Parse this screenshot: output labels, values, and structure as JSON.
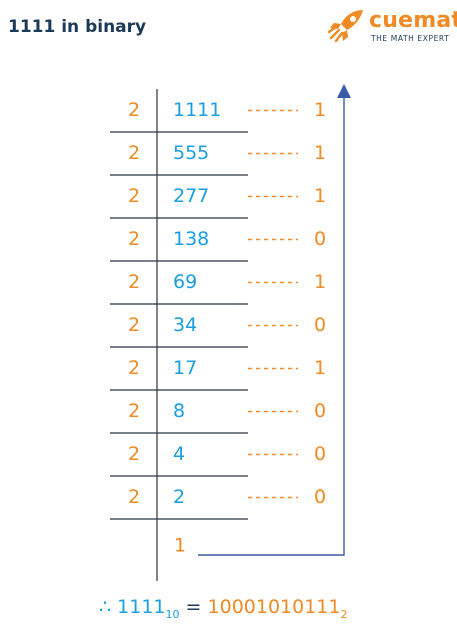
{
  "title": "1111 in binary",
  "logo": {
    "name": "cuemath",
    "tagline": "THE MATH EXPERT",
    "icon": "rocket-icon"
  },
  "colors": {
    "divisor": "#f08a24",
    "quotient": "#1a9ee0",
    "remainder": "#f08a24",
    "lines": "#2b3440",
    "arrow": "#3a5ba8",
    "dots": "#f08a24"
  },
  "division": {
    "divisor": "2",
    "dots": "------",
    "steps": [
      {
        "quotient": "1111",
        "remainder": "1"
      },
      {
        "quotient": "555",
        "remainder": "1"
      },
      {
        "quotient": "277",
        "remainder": "1"
      },
      {
        "quotient": "138",
        "remainder": "0"
      },
      {
        "quotient": "69",
        "remainder": "1"
      },
      {
        "quotient": "34",
        "remainder": "0"
      },
      {
        "quotient": "17",
        "remainder": "1"
      },
      {
        "quotient": "8",
        "remainder": "0"
      },
      {
        "quotient": "4",
        "remainder": "0"
      },
      {
        "quotient": "2",
        "remainder": "0"
      }
    ],
    "final_quotient": "1"
  },
  "conclusion": {
    "therefore": "∴",
    "decimal": "1111",
    "decimal_base": "10",
    "equals": "=",
    "binary": "10001010111",
    "binary_base": "2"
  }
}
